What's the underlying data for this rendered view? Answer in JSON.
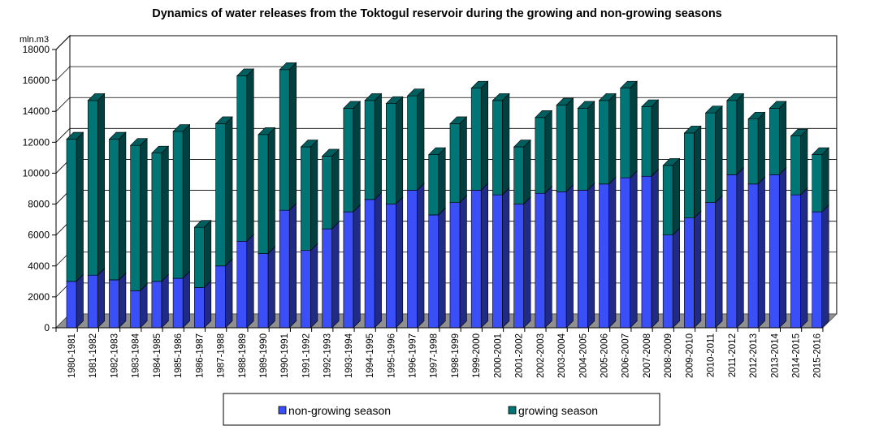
{
  "chart_data": {
    "type": "bar",
    "stacked": true,
    "title": "Dynamics of water releases from the Toktogul reservoir during the growing and non-growing seasons",
    "ylabel": "mln.m3",
    "xlabel": "",
    "ylim": [
      0,
      18000
    ],
    "yticks": [
      0,
      2000,
      4000,
      6000,
      8000,
      10000,
      12000,
      14000,
      16000,
      18000
    ],
    "grid": true,
    "legend_position": "bottom",
    "categories": [
      "1980-1981",
      "1981-1982",
      "1982-1983",
      "1983-1984",
      "1984-1985",
      "1985-1986",
      "1986-1987",
      "1987-1988",
      "1988-1989",
      "1989-1990",
      "1990-1991",
      "1991-1992",
      "1992-1993",
      "1993-1994",
      "1994-1995",
      "1995-1996",
      "1996-1997",
      "1997-1998",
      "1998-1999",
      "1999-2000",
      "2000-2001",
      "2001-2002",
      "2002-2003",
      "2003-2004",
      "2004-2005",
      "2005-2006",
      "2006-2007",
      "2007-2008",
      "2008-2009",
      "2009-2010",
      "2010-2011",
      "2011-2012",
      "2012-2013",
      "2013-2014",
      "2014-2015",
      "2015-2016"
    ],
    "series": [
      {
        "name": "non-growing season",
        "color": "#3a4ff8",
        "values": [
          3000,
          3400,
          3100,
          2400,
          3000,
          3200,
          2600,
          4000,
          5600,
          4800,
          7600,
          5000,
          6400,
          7500,
          8300,
          8000,
          8900,
          7300,
          8100,
          8900,
          8600,
          8000,
          8700,
          8800,
          8900,
          9300,
          9700,
          9800,
          6000,
          7100,
          8100,
          9900,
          9300,
          9900,
          8600,
          7500
        ]
      },
      {
        "name": "growing season",
        "color": "#007575",
        "values": [
          9200,
          11300,
          9100,
          9400,
          8300,
          9500,
          3900,
          9200,
          10700,
          7700,
          9100,
          6700,
          4700,
          6700,
          6400,
          6500,
          6100,
          3900,
          5100,
          6600,
          6100,
          3700,
          4900,
          5600,
          5300,
          5400,
          5800,
          4500,
          4500,
          5500,
          5800,
          4800,
          4200,
          4300,
          3800,
          3700
        ]
      }
    ]
  }
}
